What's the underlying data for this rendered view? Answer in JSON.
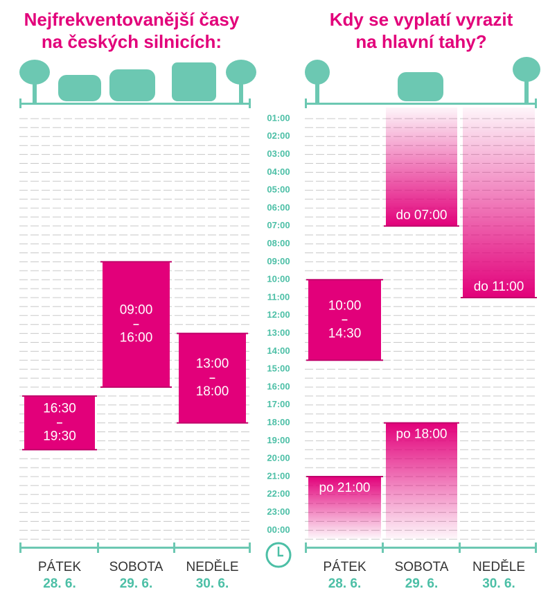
{
  "hours": [
    "01:00",
    "02:00",
    "03:00",
    "04:00",
    "05:00",
    "06:00",
    "07:00",
    "08:00",
    "09:00",
    "10:00",
    "11:00",
    "12:00",
    "13:00",
    "14:00",
    "15:00",
    "16:00",
    "17:00",
    "18:00",
    "19:00",
    "20:00",
    "21:00",
    "22:00",
    "23:00",
    "00:00"
  ],
  "days": [
    {
      "name": "PÁTEK",
      "date": "28. 6."
    },
    {
      "name": "SOBOTA",
      "date": "29. 6."
    },
    {
      "name": "NEDĚLE",
      "date": "30. 6."
    }
  ],
  "separator": "–",
  "left": {
    "title": [
      "Nejfrekventovanější časy",
      "na českých silnicích:"
    ],
    "days": [
      [
        {
          "from": "16:30",
          "to": "19:30"
        }
      ],
      [
        {
          "from": "09:00",
          "to": "16:00"
        }
      ],
      [
        {
          "from": "13:00",
          "to": "18:00"
        }
      ]
    ]
  },
  "right": {
    "title": [
      "Kdy se vyplatí vyrazit",
      "na hlavní tahy?"
    ],
    "days": [
      [
        {
          "from": "10:00",
          "to": "14:30"
        },
        {
          "label": "po 21:00"
        }
      ],
      [
        {
          "label": "do 07:00"
        },
        {
          "label": "po 18:00"
        }
      ],
      [
        {
          "label": "do 11:00"
        }
      ]
    ]
  }
}
